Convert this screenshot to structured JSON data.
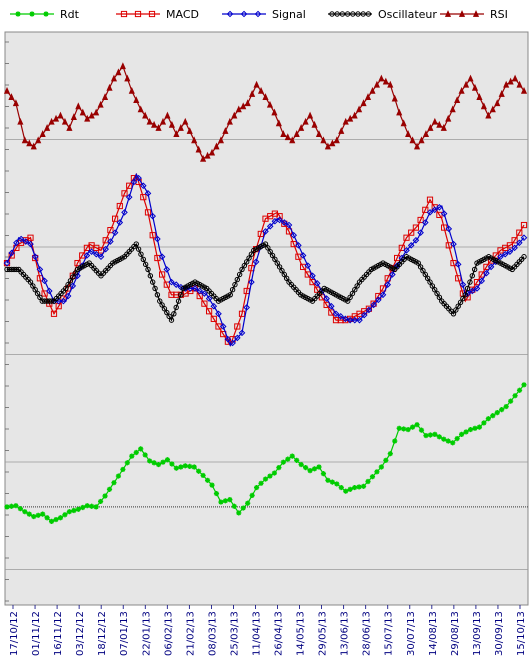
{
  "chart_data": {
    "type": "line",
    "legend_position": "top",
    "grid": true,
    "background_color": "#e6e6e6",
    "x_tick_labels": [
      "17/10/12",
      "01/11/12",
      "16/11/12",
      "03/12/12",
      "18/12/12",
      "07/01/13",
      "22/01/13",
      "06/02/13",
      "21/02/13",
      "08/03/13",
      "25/03/13",
      "11/04/13",
      "26/04/13",
      "14/05/13",
      "29/05/13",
      "13/06/13",
      "28/06/13",
      "15/07/13",
      "30/07/13",
      "14/08/13",
      "29/08/13",
      "13/09/13",
      "30/09/13",
      "15/10/13"
    ],
    "series": [
      {
        "name": "Rdt",
        "color": "#00cc00",
        "marker": "star",
        "panel": "lower",
        "values": [
          0.0,
          0.1,
          -0.4,
          -0.8,
          -0.6,
          -1.2,
          -0.9,
          -0.4,
          -0.2,
          0.1,
          0.0,
          0.9,
          2.0,
          3.1,
          4.2,
          4.8,
          3.8,
          3.5,
          3.9,
          3.2,
          3.4,
          3.3,
          2.6,
          1.8,
          0.4,
          0.6,
          -0.5,
          0.3,
          1.6,
          2.3,
          2.8,
          3.7,
          4.2,
          3.5,
          3.0,
          3.3,
          2.2,
          1.9,
          1.3,
          1.6,
          1.7,
          2.5,
          3.3,
          4.4,
          6.5,
          6.4,
          6.8,
          5.9,
          6.0,
          5.6,
          5.3,
          6.0,
          6.4,
          6.6,
          7.3,
          7.8,
          8.3,
          9.2,
          10.1
        ]
      },
      {
        "name": "MACD",
        "color": "#dd0000",
        "marker": "square",
        "panel": "middle",
        "values": [
          0.2,
          0.5,
          0.6,
          -0.2,
          -0.6,
          -0.3,
          0.2,
          0.5,
          0.4,
          0.8,
          1.3,
          1.6,
          1.0,
          0.1,
          -0.3,
          -0.3,
          -0.2,
          -0.5,
          -0.8,
          -1.1,
          -0.6,
          0.3,
          0.9,
          1.0,
          0.7,
          0.2,
          -0.1,
          -0.4,
          -0.7,
          -0.7,
          -0.6,
          -0.5,
          -0.2,
          0.2,
          0.6,
          0.8,
          1.2,
          0.9,
          0.2,
          -0.4,
          -0.1,
          0.2,
          0.4,
          0.5,
          0.8
        ]
      },
      {
        "name": "Signal",
        "color": "#0000cc",
        "marker": "diamond",
        "panel": "middle",
        "values": [
          0.2,
          0.6,
          0.5,
          0.0,
          -0.4,
          -0.4,
          0.0,
          0.4,
          0.3,
          0.6,
          1.0,
          1.6,
          1.3,
          0.4,
          -0.1,
          -0.2,
          -0.2,
          -0.3,
          -0.6,
          -1.1,
          -0.9,
          0.1,
          0.7,
          0.9,
          0.8,
          0.4,
          0.0,
          -0.3,
          -0.6,
          -0.7,
          -0.7,
          -0.5,
          -0.3,
          0.1,
          0.4,
          0.6,
          1.0,
          1.1,
          0.5,
          -0.3,
          -0.2,
          0.1,
          0.3,
          0.4,
          0.6
        ]
      },
      {
        "name": "Oscillateur",
        "color": "#000000",
        "marker": "circle",
        "panel": "middle",
        "values": [
          0.1,
          0.1,
          -0.1,
          -0.4,
          -0.4,
          -0.2,
          0.1,
          0.2,
          0.0,
          0.2,
          0.3,
          0.5,
          0.1,
          -0.4,
          -0.7,
          -0.2,
          -0.1,
          -0.2,
          -0.4,
          -0.3,
          0.1,
          0.4,
          0.5,
          0.2,
          -0.1,
          -0.3,
          -0.4,
          -0.2,
          -0.3,
          -0.4,
          -0.1,
          0.1,
          0.2,
          0.1,
          0.3,
          0.2,
          -0.1,
          -0.4,
          -0.6,
          -0.3,
          0.2,
          0.3,
          0.2,
          0.1,
          0.3
        ]
      },
      {
        "name": "RSI",
        "color": "#990000",
        "marker": "triangle",
        "panel": "upper",
        "values": [
          62,
          58,
          46,
          44,
          48,
          52,
          54,
          50,
          57,
          53,
          55,
          60,
          66,
          70,
          62,
          56,
          52,
          50,
          54,
          48,
          52,
          46,
          40,
          42,
          46,
          52,
          56,
          58,
          64,
          60,
          55,
          48,
          46,
          50,
          54,
          48,
          44,
          46,
          52,
          54,
          58,
          62,
          66,
          64,
          55,
          48,
          44,
          48,
          52,
          50,
          56,
          62,
          66,
          60,
          54,
          58,
          64,
          66,
          62
        ]
      }
    ]
  }
}
